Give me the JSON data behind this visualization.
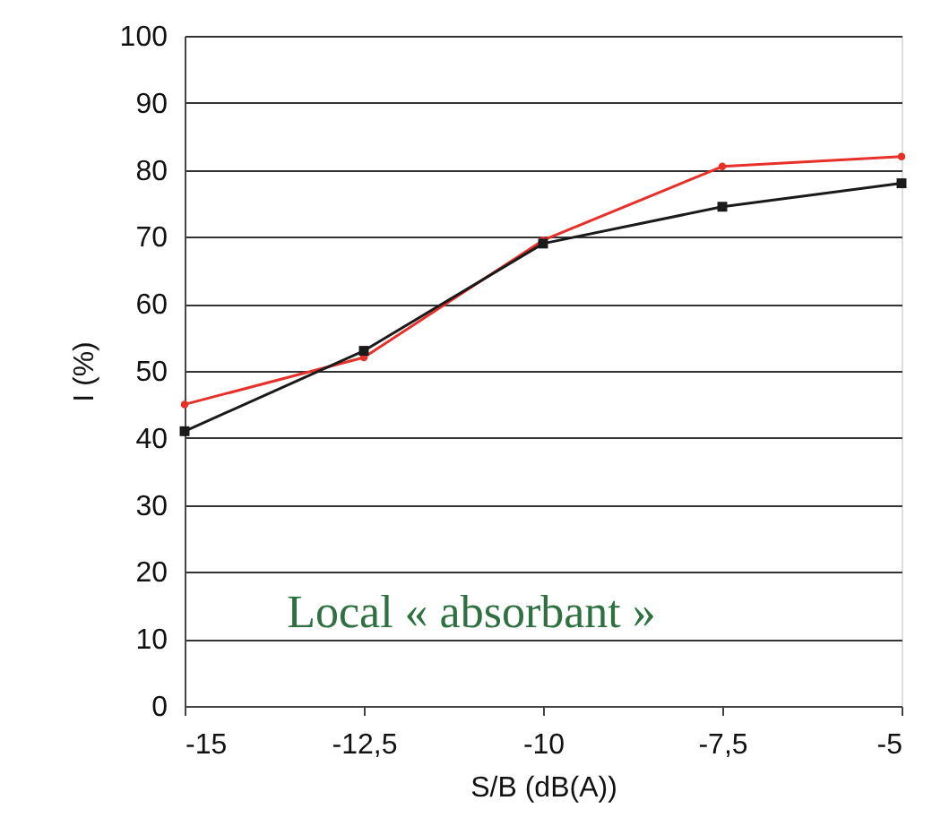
{
  "chart_data": {
    "type": "line",
    "xlabel": "S/B (dB(A))",
    "ylabel": "I (%)",
    "x": [
      -15,
      -12.5,
      -10,
      -7.5,
      -5
    ],
    "series": [
      {
        "color": "#e8302a",
        "values": [
          45,
          52,
          69.5,
          80.5,
          82
        ],
        "marker": "circle"
      },
      {
        "color": "#1a1a1a",
        "values": [
          41,
          53,
          69,
          74.5,
          78
        ],
        "marker": "square"
      }
    ],
    "xlim": [
      -15,
      -5
    ],
    "xticks": [
      -15,
      {
        "value": -12.5,
        "label": "-12,5"
      },
      -10,
      {
        "value": -7.5,
        "label": "-7,5"
      },
      -5
    ],
    "ylim": [
      0,
      100
    ],
    "yticks": [
      0,
      10,
      20,
      30,
      40,
      50,
      60,
      70,
      80,
      90,
      100
    ],
    "grid": "y",
    "line_style": "solid",
    "annotations": [
      "Local « absorbant »"
    ]
  }
}
